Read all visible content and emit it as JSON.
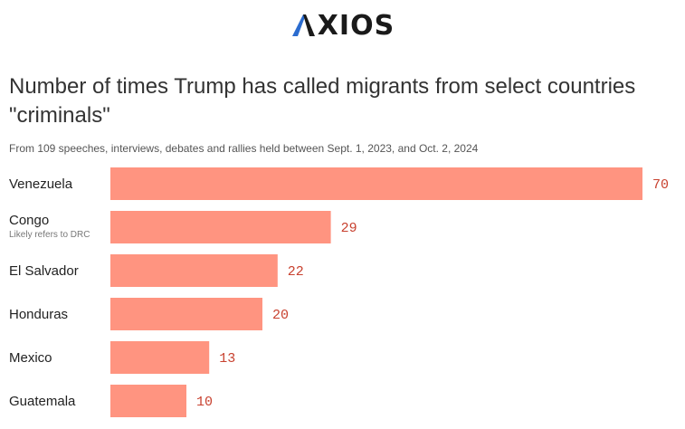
{
  "header": {
    "logo_text": "XIOS",
    "logo_icon": "axios-a-mark",
    "logo_color": "#1a1a1a",
    "logo_accent": "#2b6ccf"
  },
  "chart_data": {
    "type": "bar",
    "orientation": "horizontal",
    "title": "Number of times Trump has called migrants from select countries \"criminals\"",
    "subtitle": "From 109 speeches, interviews, debates and rallies held between Sept. 1, 2023, and Oct. 2, 2024",
    "categories": [
      "Venezuela",
      "Congo",
      "El Salvador",
      "Honduras",
      "Mexico",
      "Guatemala"
    ],
    "notes": [
      "",
      "Likely refers to DRC",
      "",
      "",
      "",
      ""
    ],
    "values": [
      70,
      29,
      22,
      20,
      13,
      10
    ],
    "xlim": [
      0,
      70
    ],
    "xlabel": "",
    "ylabel": "",
    "grid": false,
    "bar_color": "#ff9480",
    "value_color": "#c8412f"
  }
}
